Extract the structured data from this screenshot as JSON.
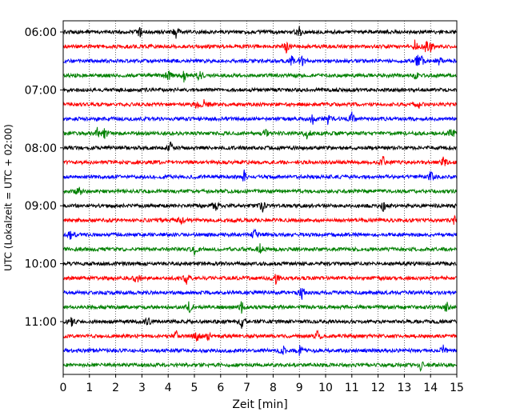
{
  "chart_data": {
    "type": "line",
    "chart_kind": "helicorder seismogram",
    "title": "",
    "xlabel": "Zeit  [min]",
    "ylabel": "UTC (Lokalzeit = UTC + 02:00)",
    "xlim": [
      0,
      15
    ],
    "x_ticks": [
      "0",
      "1",
      "2",
      "3",
      "4",
      "5",
      "6",
      "7",
      "8",
      "9",
      "10",
      "11",
      "12",
      "13",
      "14",
      "15"
    ],
    "y_tick_labels": [
      "06:00",
      "07:00",
      "08:00",
      "09:00",
      "10:00",
      "11:00"
    ],
    "trace_interval_min": 15,
    "grid": "vertical dotted at every minute",
    "color_cycle": [
      "#000000",
      "#ff0000",
      "#0000ff",
      "#008000"
    ],
    "traces": [
      {
        "start": "06:00",
        "color": "#000000",
        "events_min": [
          2.9,
          4.3,
          9.0
        ]
      },
      {
        "start": "06:15",
        "color": "#ff0000",
        "events_min": [
          8.5,
          13.4,
          13.8,
          14.0
        ]
      },
      {
        "start": "06:30",
        "color": "#0000ff",
        "events_min": [
          8.7,
          9.1,
          13.5,
          13.7,
          14.3
        ]
      },
      {
        "start": "06:45",
        "color": "#008000",
        "events_min": [
          4.0,
          4.6,
          5.2,
          13.4
        ]
      },
      {
        "start": "07:00",
        "color": "#000000",
        "events_min": []
      },
      {
        "start": "07:15",
        "color": "#ff0000",
        "events_min": [
          5.1,
          5.4,
          13.5
        ]
      },
      {
        "start": "07:30",
        "color": "#0000ff",
        "events_min": [
          9.5,
          10.1,
          11.0
        ]
      },
      {
        "start": "07:45",
        "color": "#008000",
        "events_min": [
          1.3,
          1.6,
          7.7,
          9.3,
          14.8
        ]
      },
      {
        "start": "08:00",
        "color": "#000000",
        "events_min": [
          4.1
        ]
      },
      {
        "start": "08:15",
        "color": "#ff0000",
        "events_min": [
          12.2,
          14.5
        ]
      },
      {
        "start": "08:30",
        "color": "#0000ff",
        "events_min": [
          6.9,
          14.0
        ]
      },
      {
        "start": "08:45",
        "color": "#008000",
        "events_min": [
          0.6
        ]
      },
      {
        "start": "09:00",
        "color": "#000000",
        "events_min": [
          5.8,
          7.6,
          12.2
        ]
      },
      {
        "start": "09:15",
        "color": "#ff0000",
        "events_min": [
          4.5,
          14.9
        ]
      },
      {
        "start": "09:30",
        "color": "#0000ff",
        "events_min": [
          0.3,
          7.3
        ]
      },
      {
        "start": "09:45",
        "color": "#008000",
        "events_min": [
          5.0,
          7.5
        ]
      },
      {
        "start": "10:00",
        "color": "#000000",
        "events_min": []
      },
      {
        "start": "10:15",
        "color": "#ff0000",
        "events_min": [
          2.8,
          4.7,
          8.1
        ]
      },
      {
        "start": "10:30",
        "color": "#0000ff",
        "events_min": [
          9.1
        ]
      },
      {
        "start": "10:45",
        "color": "#008000",
        "events_min": [
          4.8,
          6.8,
          14.6
        ]
      },
      {
        "start": "11:00",
        "color": "#000000",
        "events_min": [
          0.3,
          3.2,
          6.8
        ]
      },
      {
        "start": "11:15",
        "color": "#ff0000",
        "events_min": [
          4.3,
          5.1,
          5.5,
          9.7
        ]
      },
      {
        "start": "11:30",
        "color": "#0000ff",
        "events_min": [
          8.4,
          9.0,
          14.5
        ]
      },
      {
        "start": "11:45",
        "color": "#008000",
        "events_min": [
          13.6
        ]
      }
    ]
  }
}
